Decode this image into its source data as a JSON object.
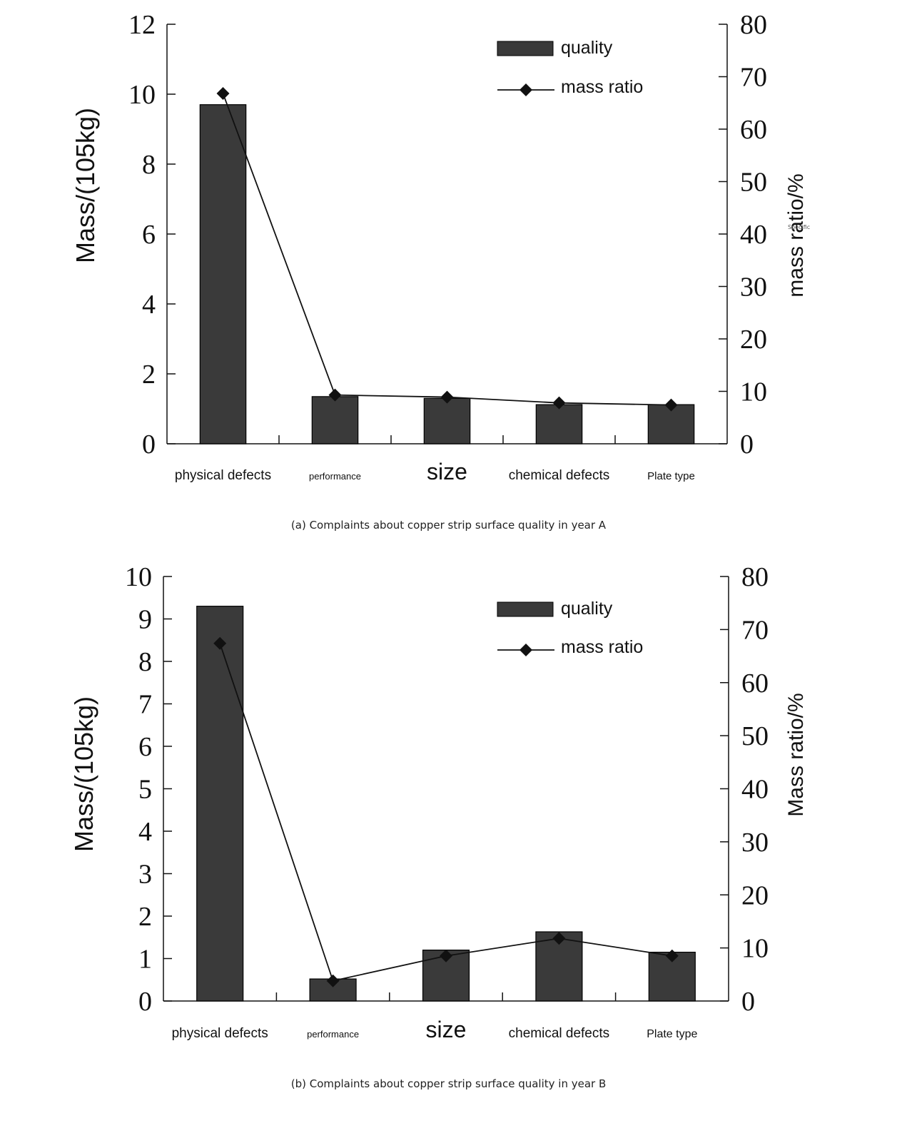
{
  "colors": {
    "bar_fill": "#3a3a3a",
    "line": "#111111",
    "axis": "#111111",
    "text": "#111111"
  },
  "chart_data": [
    {
      "type": "bar",
      "caption": "(a) Complaints about copper strip surface quality in year A",
      "categories": [
        "physical defects",
        "performance",
        "size",
        "chemical defects",
        "Plate type"
      ],
      "category_font": [
        19,
        13,
        32,
        19,
        15
      ],
      "ylabel": "Mass/(105kg)",
      "y2label": "mass ratio/%",
      "ylim": [
        0,
        12
      ],
      "yticks": [
        "0",
        "2",
        "4",
        "6",
        "8",
        "10",
        "12"
      ],
      "y2lim": [
        0,
        80
      ],
      "y2ticks": [
        "0",
        "10",
        "20",
        "30",
        "40",
        "50",
        "60",
        "70",
        "80"
      ],
      "stray_label": "Specific",
      "series": [
        {
          "name": "quality",
          "kind": "bar",
          "axis": "left",
          "values": [
            9.7,
            1.35,
            1.3,
            1.12,
            1.12
          ]
        },
        {
          "name": "mass ratio",
          "kind": "line",
          "axis": "right",
          "marker": "diamond",
          "values": [
            66.8,
            9.3,
            8.9,
            7.8,
            7.4
          ]
        }
      ],
      "legend": "top-right",
      "grid": false
    },
    {
      "type": "bar",
      "caption": "(b) Complaints about copper strip surface quality in year B",
      "categories": [
        "physical defects",
        "performance",
        "size",
        "chemical defects",
        "Plate type"
      ],
      "category_font": [
        19,
        13,
        32,
        19,
        16
      ],
      "ylabel": "Mass/(105kg)",
      "y2label": "Mass ratio/%",
      "ylim": [
        0,
        10
      ],
      "yticks": [
        "0",
        "1",
        "2",
        "3",
        "4",
        "5",
        "6",
        "7",
        "8",
        "9",
        "10"
      ],
      "y2lim": [
        0,
        80
      ],
      "y2ticks": [
        "0",
        "10",
        "20",
        "30",
        "40",
        "50",
        "60",
        "70",
        "80"
      ],
      "series": [
        {
          "name": "quality",
          "kind": "bar",
          "axis": "left",
          "values": [
            9.3,
            0.52,
            1.2,
            1.63,
            1.15
          ]
        },
        {
          "name": "mass ratio",
          "kind": "line",
          "axis": "right",
          "marker": "diamond",
          "values": [
            67.4,
            3.8,
            8.5,
            11.8,
            8.5
          ]
        }
      ],
      "legend": "top-right",
      "grid": false
    }
  ]
}
